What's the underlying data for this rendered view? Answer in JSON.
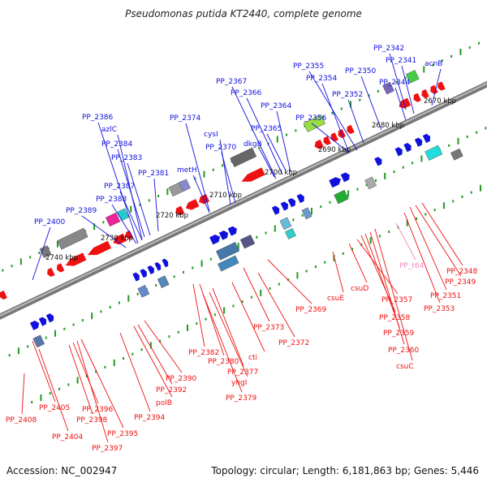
{
  "title": "Pseudomonas putida KT2440, complete genome",
  "footer": {
    "accession": "Accession: NC_002947",
    "topology": "Topology: circular; Length: 6,181,863 bp; Genes: 5,446"
  },
  "colors": {
    "forward": "#1111dd",
    "reverse": "#ee1111",
    "trna": "#ee88bb",
    "backbone": "#888888",
    "tick": "#229922"
  },
  "kbp_ticks": [
    "2670 kbp",
    "2680 kbp",
    "2690 kbp",
    "2700 kbp",
    "2710 kbp",
    "2720 kbp",
    "2730 kbp",
    "2740 kbp"
  ],
  "forward_genes": [
    "PP_2342",
    "PP_2341",
    "acnB",
    "PP_2355",
    "PP_2350",
    "PP_2354",
    "PP_2344",
    "PP_2352",
    "PP_2367",
    "PP_2366",
    "PP_2364",
    "PP_2356",
    "PP_2386",
    "PP_2374",
    "PP_2365",
    "azlC",
    "cysI",
    "dkgB",
    "PP_2384",
    "PP_2370",
    "PP_2383",
    "metH",
    "PP_2381",
    "PP_2387",
    "PP_2388",
    "PP_2389",
    "PP_2400"
  ],
  "reverse_genes": [
    "PP_t64",
    "PP_2348",
    "PP_2349",
    "PP_2351",
    "csuD",
    "PP_2353",
    "csuE",
    "PP_2357",
    "PP_2369",
    "PP_2358",
    "PP_2359",
    "PP_2373",
    "PP_2372",
    "PP_2360",
    "PP_2382",
    "PP_2380",
    "csuC",
    "cti",
    "PP_2377",
    "yhgI",
    "PP_2390",
    "PP_2379",
    "PP_2392",
    "polB",
    "PP_2394",
    "PP_2405",
    "PP_2396",
    "PP_2408",
    "PP_2398",
    "PP_2395",
    "PP_2404",
    "PP_2397"
  ]
}
